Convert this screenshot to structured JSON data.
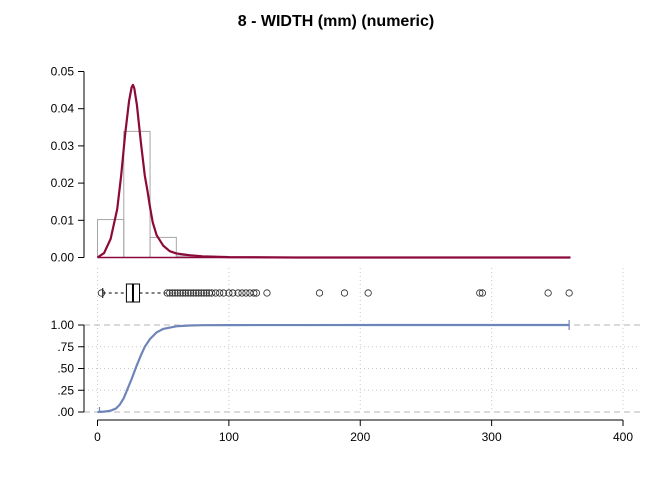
{
  "chart_data": [
    {
      "type": "bar",
      "subtype": "histogram-with-density",
      "title": "8 - WIDTH (mm) (numeric)",
      "xlabel": "",
      "ylabel": "",
      "xlim": [
        0,
        360
      ],
      "ylim": [
        0,
        0.05
      ],
      "y_ticks": [
        "0.00",
        "0.01",
        "0.02",
        "0.03",
        "0.04",
        "0.05"
      ],
      "y_tick_values": [
        0,
        0.01,
        0.02,
        0.03,
        0.04,
        0.05
      ],
      "bins": [
        {
          "x0": 0,
          "x1": 20,
          "value": 0.0102
        },
        {
          "x0": 20,
          "x1": 40,
          "value": 0.0339
        },
        {
          "x0": 40,
          "x1": 60,
          "value": 0.0054
        },
        {
          "x0": 60,
          "x1": 80,
          "value": 0.0004
        }
      ],
      "density": {
        "x": [
          0,
          5,
          10,
          15,
          18,
          21,
          24,
          26,
          27,
          28,
          30,
          33,
          36,
          38,
          40,
          42,
          45,
          50,
          55,
          60,
          70,
          80,
          100,
          150,
          200,
          300,
          360
        ],
        "y": [
          0.0,
          0.0012,
          0.005,
          0.013,
          0.022,
          0.033,
          0.042,
          0.0458,
          0.0464,
          0.0455,
          0.041,
          0.031,
          0.022,
          0.018,
          0.0135,
          0.0095,
          0.006,
          0.0032,
          0.0017,
          0.0011,
          0.0006,
          0.0003,
          0.0001,
          0.0,
          0.0,
          0.0,
          0.0
        ]
      },
      "colors": {
        "density": "#8b0a3a",
        "bars": "#a6a6a6"
      }
    },
    {
      "type": "scatter",
      "subtype": "boxplot",
      "orientation": "horizontal",
      "min": 4,
      "q1": 22,
      "median": 27,
      "q3": 32,
      "whisker_high": 52,
      "outliers": [
        3,
        53,
        55,
        57,
        59,
        61,
        63,
        65,
        67,
        69,
        71,
        73,
        75,
        77,
        79,
        81,
        83,
        85,
        87,
        90,
        93,
        96,
        100,
        103,
        107,
        110,
        113,
        116,
        119,
        121,
        129,
        169,
        188,
        206,
        291,
        293,
        343,
        359
      ]
    },
    {
      "type": "line",
      "subtype": "ecdf",
      "xlim": [
        0,
        400
      ],
      "ylim": [
        0,
        1
      ],
      "x_ticks": [
        "0",
        "100",
        "200",
        "300",
        "400"
      ],
      "x_tick_values": [
        0,
        100,
        200,
        300,
        400
      ],
      "y_ticks": [
        ".00",
        ".25",
        ".50",
        ".75",
        "1.00"
      ],
      "y_tick_values": [
        0,
        0.25,
        0.5,
        0.75,
        1.0
      ],
      "x": [
        0,
        5,
        10,
        14,
        17,
        20,
        23,
        26,
        28,
        30,
        33,
        36,
        40,
        45,
        50,
        60,
        70,
        80,
        100,
        150,
        359
      ],
      "y": [
        0.0,
        0.004,
        0.015,
        0.04,
        0.085,
        0.16,
        0.27,
        0.38,
        0.46,
        0.54,
        0.65,
        0.75,
        0.84,
        0.915,
        0.955,
        0.985,
        0.994,
        0.998,
        0.999,
        0.9995,
        1.0
      ],
      "colors": {
        "line": "#6f84b8"
      }
    }
  ]
}
